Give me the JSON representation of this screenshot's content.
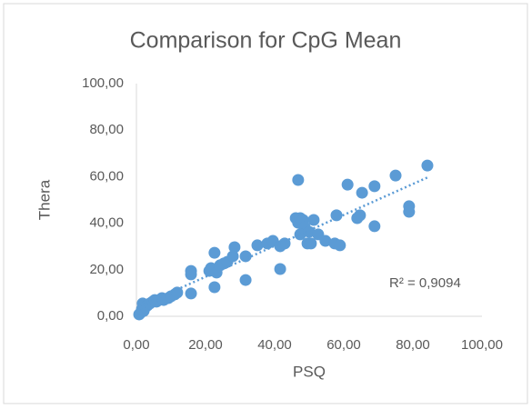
{
  "chart_data": {
    "type": "scatter",
    "title": "Comparison for CpG Mean",
    "x_label": "PSQ",
    "y_label": "Thera",
    "annotation": "R² = 0,9094",
    "color": "#5b9bd5",
    "grid": false,
    "trendline": "linear",
    "xlim": [
      0,
      100
    ],
    "ylim": [
      0,
      100
    ],
    "xticks": [
      {
        "value": 0,
        "label": "0,00"
      },
      {
        "value": 20,
        "label": "20,00"
      },
      {
        "value": 40,
        "label": "40,00"
      },
      {
        "value": 60,
        "label": "60,00"
      },
      {
        "value": 80,
        "label": "80,00"
      },
      {
        "value": 100,
        "label": "100,00"
      }
    ],
    "yticks": [
      {
        "value": 0,
        "label": "0,00"
      },
      {
        "value": 20,
        "label": "20,00"
      },
      {
        "value": 40,
        "label": "40,00"
      },
      {
        "value": 60,
        "label": "60,00"
      },
      {
        "value": 80,
        "label": "80,00"
      },
      {
        "value": 100,
        "label": "100,00"
      }
    ],
    "x": [
      0.8,
      1.3,
      1.6,
      2.1,
      2.6,
      1.8,
      3.2,
      3.9,
      4.7,
      5.3,
      5.8,
      6.6,
      7.4,
      7.9,
      9.2,
      10.0,
      11.1,
      11.8,
      15.8,
      15.8,
      15.8,
      21.1,
      21.6,
      22.6,
      22.6,
      23.2,
      24.2,
      25.3,
      26.3,
      27.9,
      28.4,
      31.6,
      31.6,
      35.0,
      37.9,
      39.5,
      41.6,
      41.6,
      42.9,
      46.8,
      46.1,
      46.8,
      47.4,
      48.2,
      48.7,
      47.4,
      49.5,
      50.0,
      50.5,
      51.3,
      52.6,
      54.7,
      57.4,
      57.9,
      58.9,
      61.1,
      63.9,
      64.7,
      65.3,
      68.9,
      68.9,
      75.0,
      78.9,
      78.9,
      84.2
    ],
    "values": [
      0.8,
      1.6,
      3.1,
      2.3,
      3.9,
      5.5,
      4.7,
      5.5,
      6.3,
      7.0,
      6.3,
      7.0,
      7.8,
      7.0,
      7.8,
      8.6,
      9.4,
      10.2,
      9.8,
      19.5,
      18.0,
      19.5,
      20.7,
      12.5,
      27.3,
      18.8,
      21.9,
      22.7,
      23.4,
      25.8,
      29.7,
      25.8,
      15.6,
      30.5,
      31.3,
      32.4,
      30.1,
      20.3,
      31.3,
      58.6,
      42.2,
      40.2,
      42.2,
      41.4,
      38.3,
      35.2,
      31.3,
      36.3,
      31.3,
      41.4,
      35.2,
      32.4,
      31.3,
      43.4,
      30.5,
      56.6,
      42.2,
      43.4,
      53.1,
      38.7,
      55.9,
      60.5,
      47.3,
      44.9,
      64.8
    ]
  }
}
